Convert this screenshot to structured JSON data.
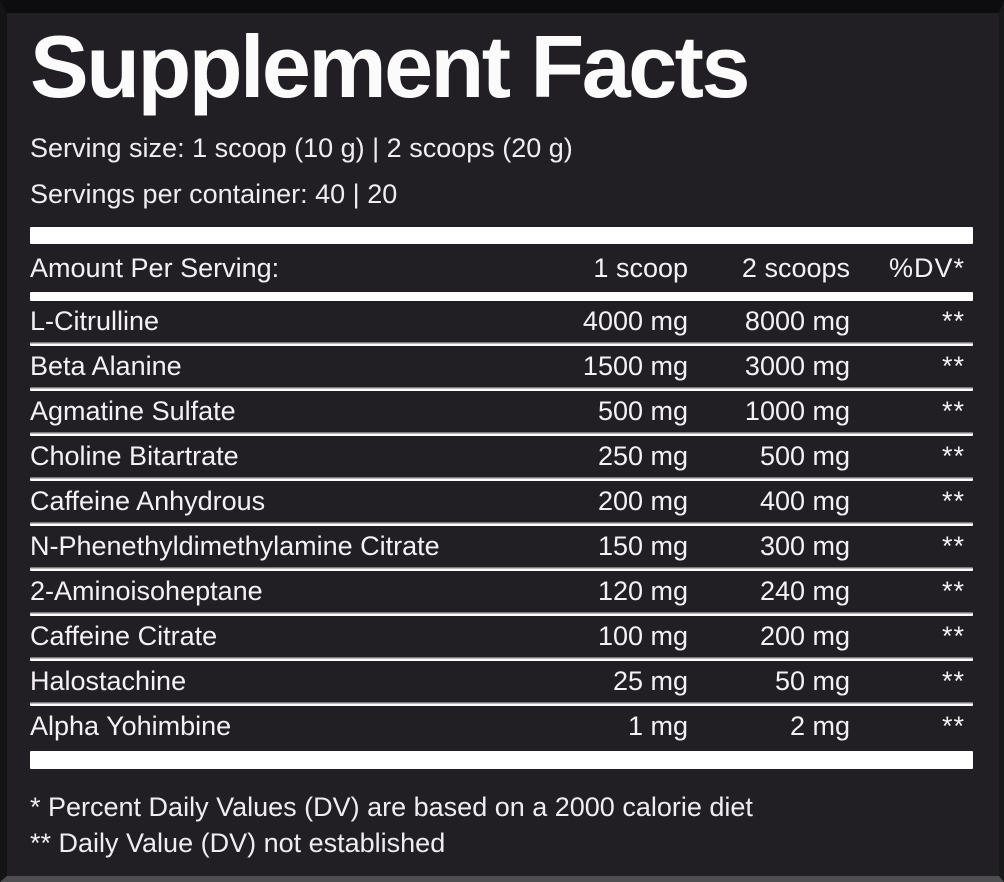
{
  "colors": {
    "background": "#211f24",
    "text": "#f7f7f7",
    "rule": "#ffffff"
  },
  "label": {
    "title": "Supplement Facts",
    "serving_size_line": "Serving size: 1 scoop (10 g) | 2 scoops (20 g)",
    "servings_per_container_line": "Servings per container: 40 | 20"
  },
  "table": {
    "header": {
      "amount_label": "Amount Per Serving:",
      "col_1_scoop": "1 scoop",
      "col_2_scoops": "2 scoops",
      "col_dv": "%DV*"
    },
    "rows": [
      {
        "name": "L-Citrulline",
        "scoop1": "4000 mg",
        "scoop2": "8000 mg",
        "dv": "**"
      },
      {
        "name": "Beta Alanine",
        "scoop1": "1500 mg",
        "scoop2": "3000 mg",
        "dv": "**"
      },
      {
        "name": "Agmatine Sulfate",
        "scoop1": "500 mg",
        "scoop2": "1000 mg",
        "dv": "**"
      },
      {
        "name": "Choline Bitartrate",
        "scoop1": "250 mg",
        "scoop2": "500 mg",
        "dv": "**"
      },
      {
        "name": "Caffeine Anhydrous",
        "scoop1": "200 mg",
        "scoop2": "400 mg",
        "dv": "**"
      },
      {
        "name": "N-Phenethyldimethylamine Citrate",
        "scoop1": "150 mg",
        "scoop2": "300 mg",
        "dv": "**"
      },
      {
        "name": "2-Aminoisoheptane",
        "scoop1": "120 mg",
        "scoop2": "240 mg",
        "dv": "**"
      },
      {
        "name": "Caffeine Citrate",
        "scoop1": "100 mg",
        "scoop2": "200 mg",
        "dv": "**"
      },
      {
        "name": "Halostachine",
        "scoop1": "25 mg",
        "scoop2": "50 mg",
        "dv": "**"
      },
      {
        "name": "Alpha Yohimbine",
        "scoop1": "1 mg",
        "scoop2": "2 mg",
        "dv": "**"
      }
    ]
  },
  "footnotes": {
    "dv_basis": "* Percent Daily Values (DV) are based on a 2000 calorie diet",
    "dv_not_established": "** Daily Value (DV) not established"
  }
}
